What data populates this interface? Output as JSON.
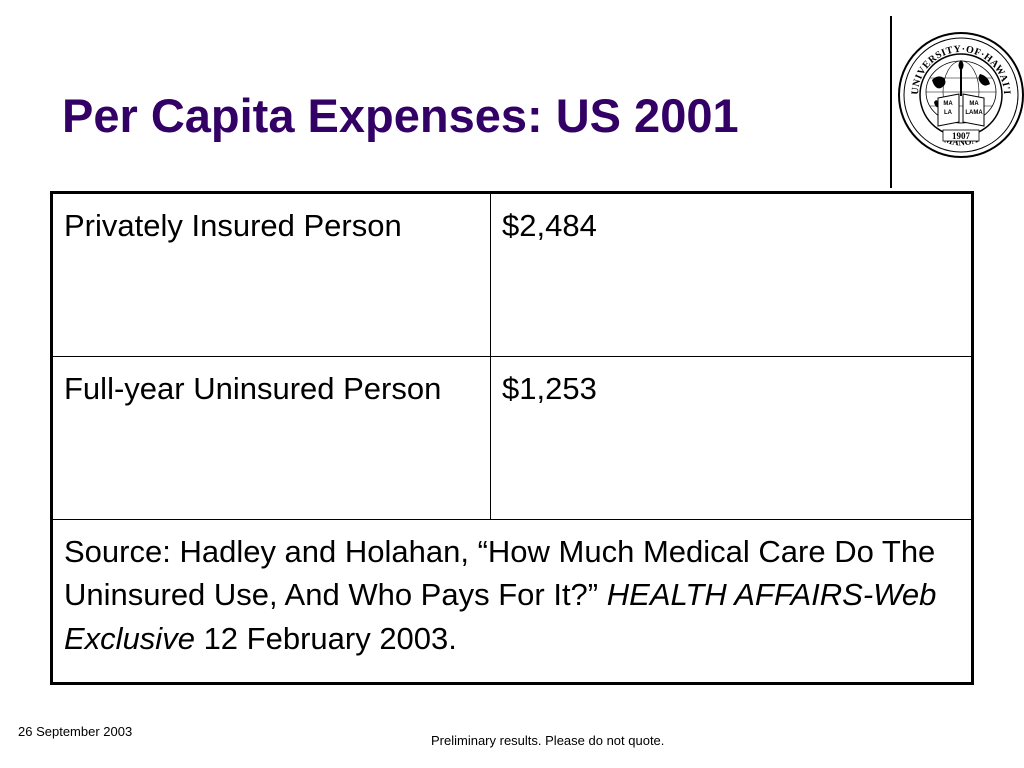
{
  "slide": {
    "title": "Per Capita Expenses: US 2001",
    "logo": {
      "icon": "university-of-hawaii-seal-icon",
      "top_text": "UNIVERSITY·OF·HAWAI'I",
      "bottom_text": "MĀNOA",
      "year": "1907",
      "book_text": [
        "MA",
        "MA",
        "LA",
        "LAMA"
      ]
    },
    "table": {
      "rows": [
        {
          "label": "Privately Insured Person",
          "value": "$2,484"
        },
        {
          "label": "Full-year Uninsured Person",
          "value": "$1,253"
        }
      ],
      "source": {
        "text": "Source: Hadley and Holahan, “How Much Medical Care Do The Uninsured Use, And Who Pays For It?”",
        "journal": "HEALTH AFFAIRS-Web Exclusive",
        "date": "12 February 2003."
      }
    },
    "footer": {
      "date": "26 September 2003",
      "note": "Preliminary results.  Please do not quote."
    },
    "colors": {
      "title": "#330066",
      "text": "#000000",
      "background": "#ffffff"
    }
  }
}
